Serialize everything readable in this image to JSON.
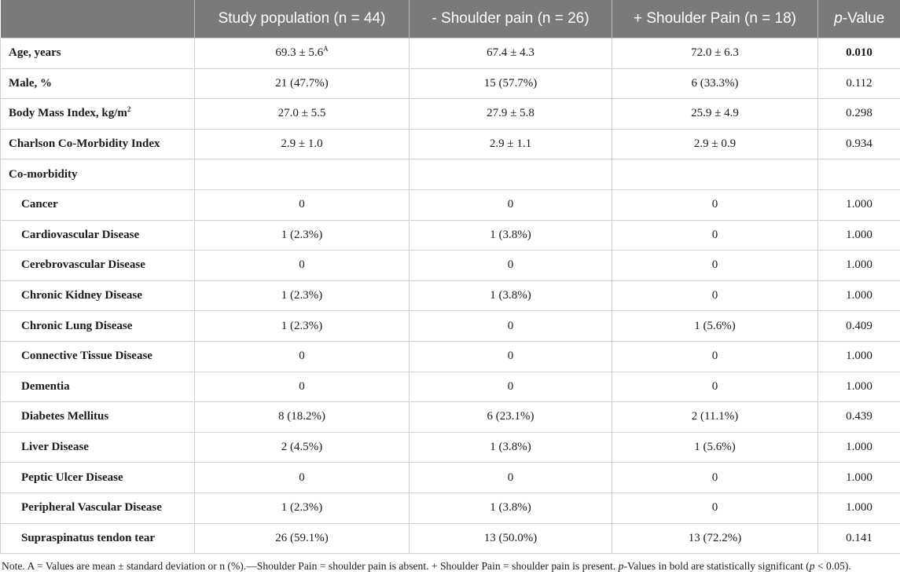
{
  "headers": {
    "col0": "",
    "col1": "Study population (n = 44)",
    "col2": "- Shoulder pain (n = 26)",
    "col3": "+ Shoulder Pain (n = 18)",
    "col4_italic": "p",
    "col4_rest": "-Value"
  },
  "rows": [
    {
      "label": "Age, years",
      "c1": "69.3 ± 5.6",
      "c1_sup": "A",
      "c2": "67.4 ± 4.3",
      "c3": "72.0 ± 6.3",
      "p": "0.010"
    },
    {
      "label": "Male, %",
      "c1": "21 (47.7%)",
      "c2": "15 (57.7%)",
      "c3": "6 (33.3%)",
      "p": "0.112"
    },
    {
      "label_text": "Body Mass Index, kg/m",
      "label_sup": "2",
      "c1": "27.0 ± 5.5",
      "c2": "27.9 ± 5.8",
      "c3": "25.9 ± 4.9",
      "p": "0.298"
    },
    {
      "label": "Charlson Co-Morbidity Index",
      "c1": "2.9 ± 1.0",
      "c2": "2.9 ± 1.1",
      "c3": "2.9 ± 0.9",
      "p": "0.934"
    },
    {
      "label": "Co-morbidity",
      "c1": "",
      "c2": "",
      "c3": "",
      "p": ""
    },
    {
      "label": "Cancer",
      "c1": "0",
      "c2": "0",
      "c3": "0",
      "p": "1.000"
    },
    {
      "label": "Cardiovascular Disease",
      "c1": "1 (2.3%)",
      "c2": "1 (3.8%)",
      "c3": "0",
      "p": "1.000"
    },
    {
      "label": "Cerebrovascular Disease",
      "c1": "0",
      "c2": "0",
      "c3": "0",
      "p": "1.000"
    },
    {
      "label": "Chronic Kidney Disease",
      "c1": "1 (2.3%)",
      "c2": "1 (3.8%)",
      "c3": "0",
      "p": "1.000"
    },
    {
      "label": "Chronic Lung Disease",
      "c1": "1 (2.3%)",
      "c2": "0",
      "c3": "1 (5.6%)",
      "p": "0.409"
    },
    {
      "label": "Connective Tissue Disease",
      "c1": "0",
      "c2": "0",
      "c3": "0",
      "p": "1.000"
    },
    {
      "label": "Dementia",
      "c1": "0",
      "c2": "0",
      "c3": "0",
      "p": "1.000"
    },
    {
      "label": "Diabetes Mellitus",
      "c1": "8 (18.2%)",
      "c2": "6 (23.1%)",
      "c3": "2 (11.1%)",
      "p": "0.439"
    },
    {
      "label": "Liver Disease",
      "c1": "2 (4.5%)",
      "c2": "1 (3.8%)",
      "c3": "1 (5.6%)",
      "p": "1.000"
    },
    {
      "label": "Peptic Ulcer Disease",
      "c1": "0",
      "c2": "0",
      "c3": "0",
      "p": "1.000"
    },
    {
      "label": "Peripheral Vascular Disease",
      "c1": "1 (2.3%)",
      "c2": "1 (3.8%)",
      "c3": "0",
      "p": "1.000"
    },
    {
      "label": "Supraspinatus tendon tear",
      "c1": "26 (59.1%)",
      "c2": "13 (50.0%)",
      "c3": "13 (72.2%)",
      "p": "0.141"
    }
  ],
  "note": {
    "part1": "Note. A = Values are mean ± standard deviation or n (%).—Shoulder Pain = shoulder pain is absent. + Shoulder Pain = shoulder pain is present. ",
    "p1": "p",
    "part2": "-Values in bold are statistically significant (",
    "p2": "p",
    "part3": " < 0.05)."
  }
}
